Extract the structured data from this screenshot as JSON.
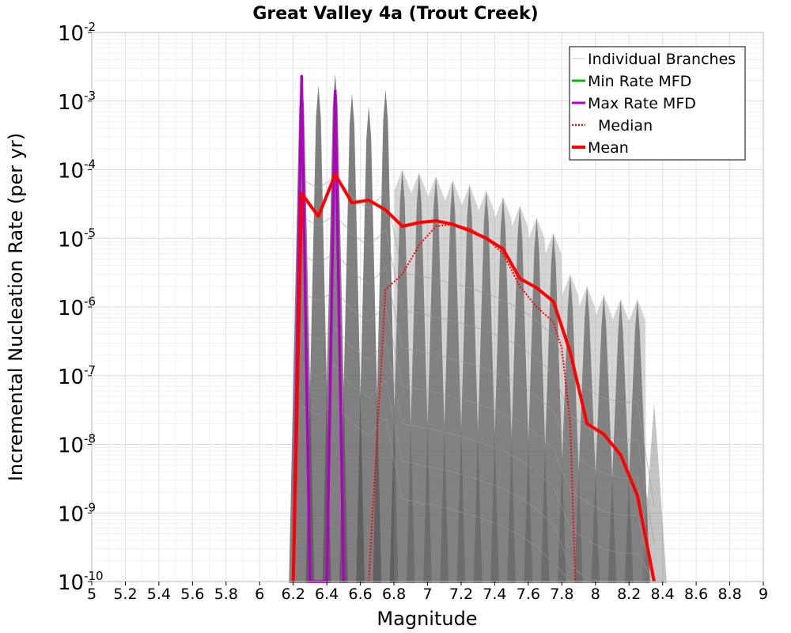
{
  "chart_data": {
    "type": "line",
    "title": "Great Valley 4a (Trout Creek)",
    "xlabel": "Magnitude",
    "ylabel": "Incremental Nucleation Rate (per yr)",
    "yscale": "log",
    "xlim": [
      5,
      9
    ],
    "ylim_exp": [
      -10,
      -2
    ],
    "xticks": [
      "5",
      "5.2",
      "5.4",
      "5.6",
      "5.8",
      "6",
      "6.2",
      "6.4",
      "6.6",
      "6.8",
      "7",
      "7.2",
      "7.4",
      "7.6",
      "7.8",
      "8",
      "8.2",
      "8.4",
      "8.6",
      "8.8",
      "9"
    ],
    "yticks": [
      {
        "base": "10",
        "exp": "-2"
      },
      {
        "base": "10",
        "exp": "-3"
      },
      {
        "base": "10",
        "exp": "-4"
      },
      {
        "base": "10",
        "exp": "-5"
      },
      {
        "base": "10",
        "exp": "-6"
      },
      {
        "base": "10",
        "exp": "-7"
      },
      {
        "base": "10",
        "exp": "-8"
      },
      {
        "base": "10",
        "exp": "-9"
      },
      {
        "base": "10",
        "exp": "-10"
      }
    ],
    "legend_position": "top-right",
    "legend": [
      {
        "label": "Individual Branches",
        "color": "#c8c8c8",
        "style": "thin"
      },
      {
        "label": "Min Rate MFD",
        "color": "#00bb00",
        "style": "solid"
      },
      {
        "label": "Max Rate MFD",
        "color": "#b000c0",
        "style": "solid"
      },
      {
        "label": "Median",
        "color": "#ff0000",
        "style": "dotted"
      },
      {
        "label": "Mean",
        "color": "#ff0000",
        "style": "thick"
      }
    ],
    "series": [
      {
        "name": "Mean",
        "color": "#ff0000",
        "x": [
          6.2,
          6.25,
          6.35,
          6.45,
          6.55,
          6.65,
          6.75,
          6.85,
          6.95,
          7.05,
          7.15,
          7.25,
          7.35,
          7.45,
          7.55,
          7.65,
          7.75,
          7.85,
          7.95,
          8.05,
          8.15,
          8.25,
          8.35
        ],
        "y": [
          1e-10,
          4.5e-05,
          2.1e-05,
          8.5e-05,
          3.3e-05,
          3.6e-05,
          2.6e-05,
          1.5e-05,
          1.7e-05,
          1.8e-05,
          1.6e-05,
          1.3e-05,
          1e-05,
          7e-06,
          2.6e-06,
          1.9e-06,
          1.2e-06,
          2.2e-07,
          2e-08,
          1.4e-08,
          7e-09,
          1.8e-09,
          1e-10
        ]
      },
      {
        "name": "Median",
        "color": "#ff0000",
        "x": [
          6.65,
          6.75,
          6.85,
          6.95,
          7.05,
          7.15,
          7.25,
          7.35,
          7.45,
          7.55,
          7.65,
          7.75,
          7.8,
          7.85,
          7.88
        ],
        "y": [
          1e-10,
          1.8e-06,
          3e-06,
          8e-06,
          1.5e-05,
          1.6e-05,
          1.4e-05,
          1e-05,
          6e-06,
          2e-06,
          1e-06,
          6e-07,
          2.5e-07,
          2e-08,
          1e-10
        ]
      },
      {
        "name": "Max Rate MFD",
        "color": "#b000c0",
        "x": [
          6.2,
          6.25,
          6.3,
          6.4,
          6.45,
          6.5
        ],
        "y": [
          1e-10,
          0.0023,
          1e-10,
          1e-10,
          0.0014,
          1e-10
        ]
      }
    ],
    "branch_envelope": {
      "name": "Individual Branches",
      "color": "#555555",
      "spikes": [
        {
          "x": 6.25,
          "y": 0.0023
        },
        {
          "x": 6.35,
          "y": 0.0017
        },
        {
          "x": 6.45,
          "y": 0.0025
        },
        {
          "x": 6.55,
          "y": 0.0013
        },
        {
          "x": 6.65,
          "y": 0.00085
        },
        {
          "x": 6.75,
          "y": 0.0015
        },
        {
          "x": 6.85,
          "y": 0.0001
        },
        {
          "x": 6.95,
          "y": 9e-05
        },
        {
          "x": 7.05,
          "y": 8e-05
        },
        {
          "x": 7.15,
          "y": 7e-05
        },
        {
          "x": 7.25,
          "y": 6e-05
        },
        {
          "x": 7.35,
          "y": 5e-05
        },
        {
          "x": 7.45,
          "y": 4e-05
        },
        {
          "x": 7.55,
          "y": 3e-05
        },
        {
          "x": 7.65,
          "y": 2e-05
        },
        {
          "x": 7.75,
          "y": 1.2e-05
        },
        {
          "x": 7.85,
          "y": 3e-06
        },
        {
          "x": 7.95,
          "y": 2e-06
        },
        {
          "x": 8.05,
          "y": 1.5e-06
        },
        {
          "x": 8.15,
          "y": 1.3e-06
        },
        {
          "x": 8.25,
          "y": 1.3e-06
        },
        {
          "x": 8.35,
          "y": 4e-08
        }
      ]
    }
  }
}
